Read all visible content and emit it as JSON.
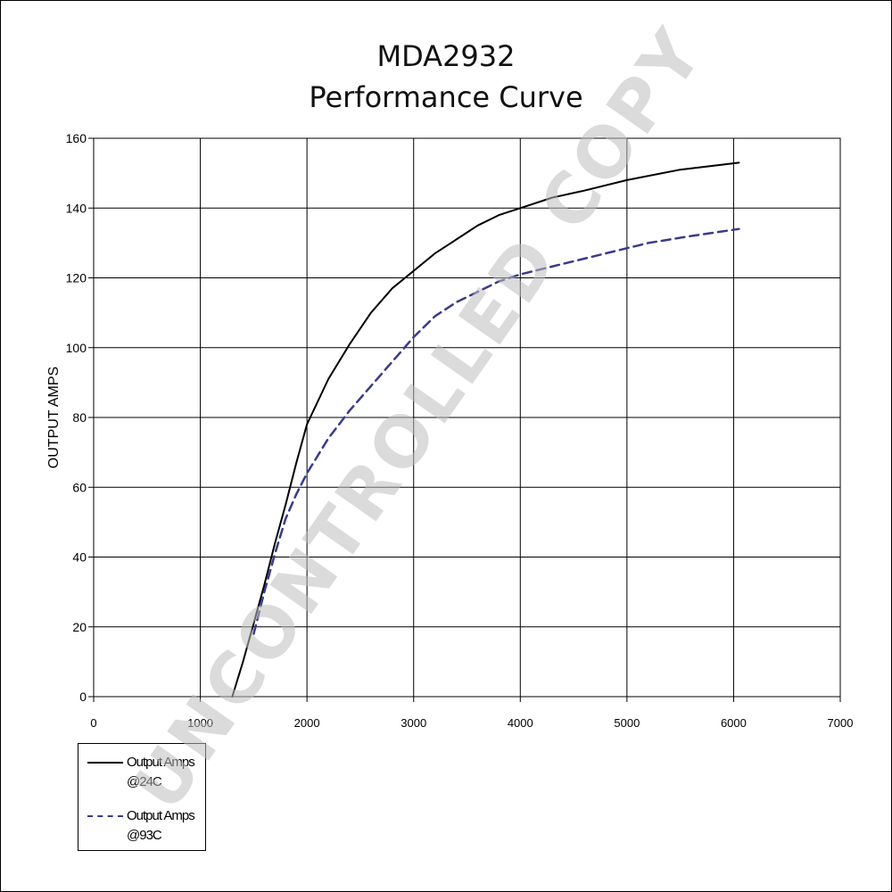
{
  "title_line1": "MDA2932",
  "title_line2": "Performance Curve",
  "watermark": "UNCONTROLLED COPY",
  "chart_data": {
    "type": "line",
    "title": "MDA2932 Performance Curve",
    "xlabel": "",
    "ylabel": "OUTPUT AMPS",
    "xlim": [
      0,
      7000
    ],
    "ylim": [
      0,
      160
    ],
    "x_ticks": [
      0,
      1000,
      2000,
      3000,
      4000,
      5000,
      6000,
      7000
    ],
    "y_ticks": [
      0,
      20,
      40,
      60,
      80,
      100,
      120,
      140,
      160
    ],
    "grid": true,
    "legend_position": "bottom-left",
    "series": [
      {
        "name": "Output Amps @24C",
        "color": "#000000",
        "style": "solid",
        "x": [
          1300,
          1400,
          1500,
          1600,
          1700,
          1800,
          1900,
          2000,
          2200,
          2400,
          2600,
          2800,
          3000,
          3200,
          3400,
          3600,
          3800,
          4000,
          4300,
          4600,
          5000,
          5500,
          6050
        ],
        "y": [
          0,
          10,
          21,
          32,
          44,
          55,
          67,
          78,
          91,
          101,
          110,
          117,
          122,
          127,
          131,
          135,
          138,
          140,
          143,
          145,
          148,
          151,
          153
        ]
      },
      {
        "name": "Output Amps @93C",
        "color": "#3a3a8c",
        "style": "dashed",
        "x": [
          1500,
          1600,
          1700,
          1800,
          1900,
          2000,
          2200,
          2400,
          2600,
          2800,
          3000,
          3200,
          3400,
          3600,
          3800,
          4000,
          4400,
          4800,
          5200,
          5600,
          6050
        ],
        "y": [
          18,
          30,
          41,
          51,
          58,
          64,
          74,
          82,
          89,
          96,
          103,
          109,
          113,
          116,
          119,
          121,
          124,
          127,
          130,
          132,
          134
        ]
      }
    ]
  },
  "legend": {
    "item1": {
      "line1": "Output Amps",
      "line2": "@24C"
    },
    "item2": {
      "line1": "Output Amps",
      "line2": "@93C"
    }
  }
}
